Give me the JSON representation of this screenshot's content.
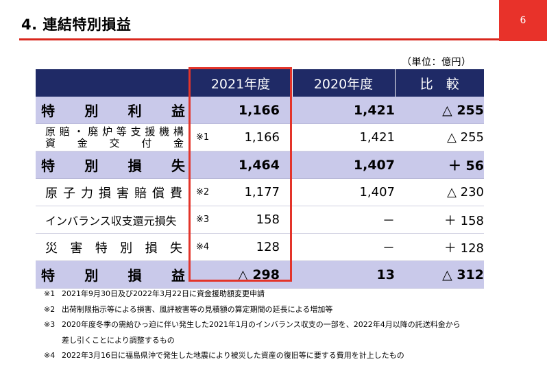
{
  "header": {
    "title": "4. 連結特別損益",
    "page_number": "6"
  },
  "unit_label": "（単位：億円）",
  "table": {
    "columns": [
      "2021年度",
      "2020年度",
      "比　較"
    ],
    "rows": [
      {
        "type": "sum",
        "label_chars": [
          "特",
          "別",
          "利",
          "益"
        ],
        "note": "",
        "v2021": "1,166",
        "v2020": "1,421",
        "cmp": "△ 255"
      },
      {
        "type": "stack",
        "label_line1": [
          "原",
          "賠",
          "・",
          "廃",
          "炉",
          "等",
          "支",
          "援",
          "機",
          "構"
        ],
        "label_line2": [
          "資",
          "金",
          "交",
          "付",
          "金"
        ],
        "note": "※1",
        "v2021": "1,166",
        "v2020": "1,421",
        "cmp": "△ 255"
      },
      {
        "type": "sum",
        "label_chars": [
          "特",
          "別",
          "損",
          "失"
        ],
        "note": "",
        "v2021": "1,464",
        "v2020": "1,407",
        "cmp": "＋ 56"
      },
      {
        "type": "sub",
        "label_chars": [
          "原",
          "子",
          "力",
          "損",
          "害",
          "賠",
          "償",
          "費"
        ],
        "note": "※2",
        "v2021": "1,177",
        "v2020": "1,407",
        "cmp": "△ 230"
      },
      {
        "type": "sub-plain",
        "label": "インバランス収支還元損失",
        "note": "※3",
        "v2021": "158",
        "v2020": "－",
        "cmp": "＋ 158"
      },
      {
        "type": "sub",
        "label_chars": [
          "災",
          "害",
          "特",
          "別",
          "損",
          "失"
        ],
        "note": "※4",
        "v2021": "128",
        "v2020": "－",
        "cmp": "＋ 128"
      },
      {
        "type": "sum",
        "label_chars": [
          "特",
          "別",
          "損",
          "益"
        ],
        "note": "",
        "v2021": "△ 298",
        "v2020": "13",
        "cmp": "△ 312"
      }
    ]
  },
  "footnotes": [
    {
      "mark": "※1",
      "text": "2021年9月30日及び2022年3月22日に資金援助額変更申請"
    },
    {
      "mark": "※2",
      "text": "出荷制限指示等による損害、風評被害等の見積額の算定期間の延長による増加等"
    },
    {
      "mark": "※3",
      "text": "2020年度冬季の需給ひっ迫に伴い発生した2021年1月のインバランス収支の一部を、2022年4月以降の託送料金から"
    },
    {
      "mark": "",
      "text": "差し引くことにより調整するもの"
    },
    {
      "mark": "※4",
      "text": "2022年3月16日に福島県沖で発生した地震により被災した資産の復旧等に要する費用を計上したもの"
    }
  ],
  "colors": {
    "accent_red": "#e3342a",
    "header_navy": "#1f2a66",
    "summary_row": "#c9c9ea"
  }
}
